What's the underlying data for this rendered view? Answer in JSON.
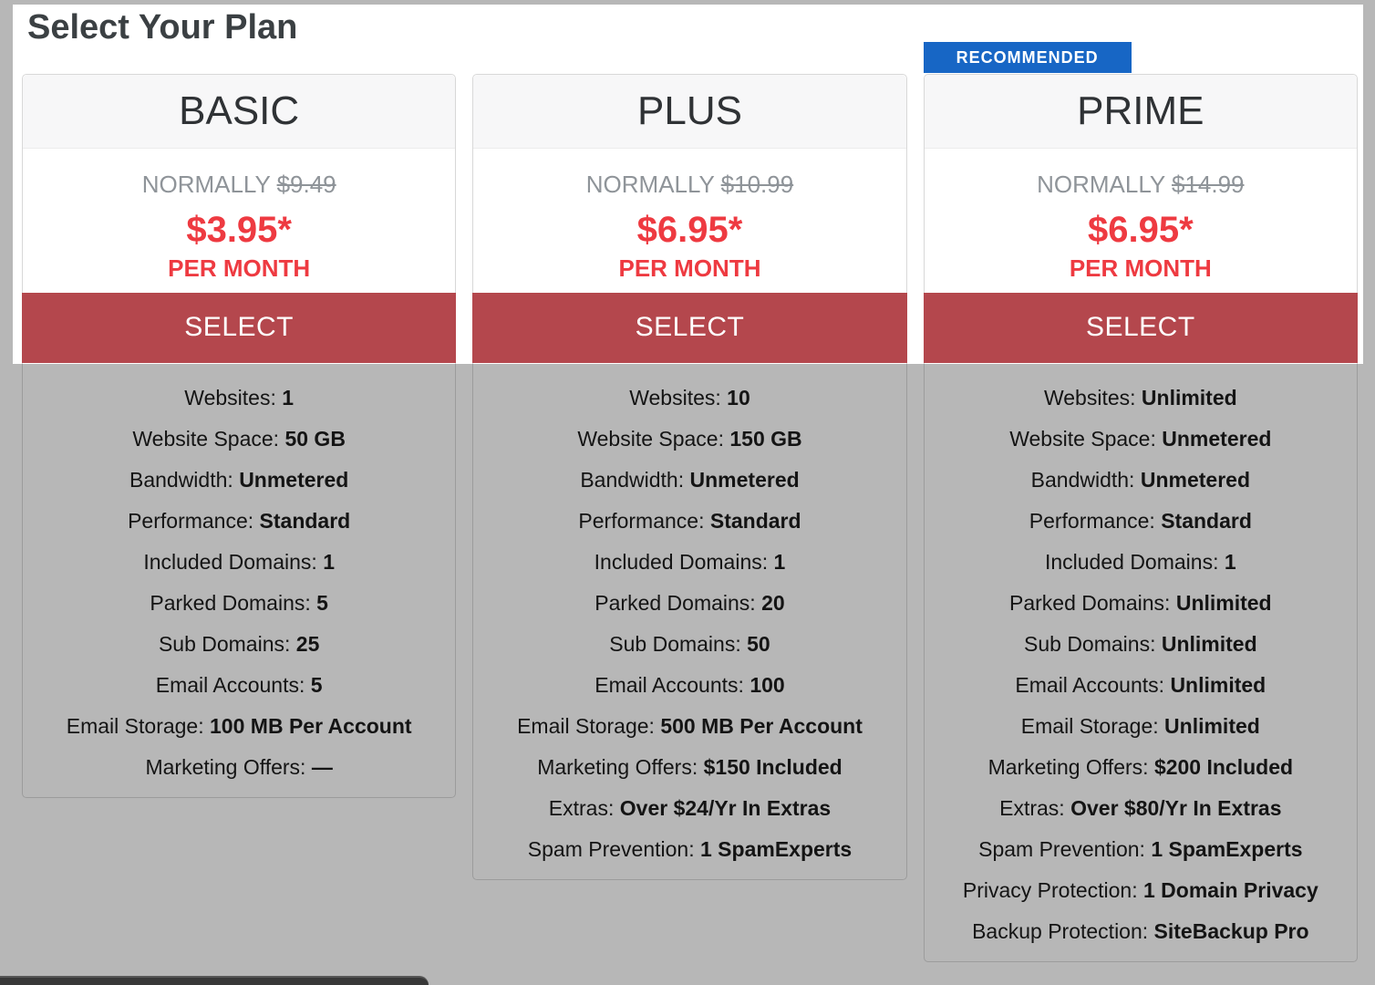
{
  "page_title": "Select Your Plan",
  "recommended_badge_label": "RECOMMENDED",
  "colors": {
    "price_red": "#ee3a41",
    "button_red": "#b4474d",
    "badge_blue": "#1766c5",
    "normally_gray": "#8f9499"
  },
  "plans": [
    {
      "name": "BASIC",
      "normally_label": "NORMALLY",
      "normally_price": "$9.49",
      "price": "$3.95*",
      "per_label": "PER MONTH",
      "select_label": "SELECT",
      "features": [
        {
          "label": "Websites:",
          "value": "1"
        },
        {
          "label": "Website Space:",
          "value": "50 GB"
        },
        {
          "label": "Bandwidth:",
          "value": "Unmetered"
        },
        {
          "label": "Performance:",
          "value": "Standard"
        },
        {
          "label": "Included Domains:",
          "value": "1"
        },
        {
          "label": "Parked Domains:",
          "value": "5"
        },
        {
          "label": "Sub Domains:",
          "value": "25"
        },
        {
          "label": "Email Accounts:",
          "value": "5"
        },
        {
          "label": "Email Storage:",
          "value": "100 MB Per Account"
        },
        {
          "label": "Marketing Offers:",
          "value": "—"
        }
      ]
    },
    {
      "name": "PLUS",
      "normally_label": "NORMALLY",
      "normally_price": "$10.99",
      "price": "$6.95*",
      "per_label": "PER MONTH",
      "select_label": "SELECT",
      "features": [
        {
          "label": "Websites:",
          "value": "10"
        },
        {
          "label": "Website Space:",
          "value": "150 GB"
        },
        {
          "label": "Bandwidth:",
          "value": "Unmetered"
        },
        {
          "label": "Performance:",
          "value": "Standard"
        },
        {
          "label": "Included Domains:",
          "value": "1"
        },
        {
          "label": "Parked Domains:",
          "value": "20"
        },
        {
          "label": "Sub Domains:",
          "value": "50"
        },
        {
          "label": "Email Accounts:",
          "value": "100"
        },
        {
          "label": "Email Storage:",
          "value": "500 MB Per Account"
        },
        {
          "label": "Marketing Offers:",
          "value": "$150 Included"
        },
        {
          "label": "Extras:",
          "value": "Over $24/Yr In Extras"
        },
        {
          "label": "Spam Prevention:",
          "value": "1 SpamExperts"
        }
      ]
    },
    {
      "name": "PRIME",
      "normally_label": "NORMALLY",
      "normally_price": "$14.99",
      "price": "$6.95*",
      "per_label": "PER MONTH",
      "select_label": "SELECT",
      "features": [
        {
          "label": "Websites:",
          "value": "Unlimited"
        },
        {
          "label": "Website Space:",
          "value": "Unmetered"
        },
        {
          "label": "Bandwidth:",
          "value": "Unmetered"
        },
        {
          "label": "Performance:",
          "value": "Standard"
        },
        {
          "label": "Included Domains:",
          "value": "1"
        },
        {
          "label": "Parked Domains:",
          "value": "Unlimited"
        },
        {
          "label": "Sub Domains:",
          "value": "Unlimited"
        },
        {
          "label": "Email Accounts:",
          "value": "Unlimited"
        },
        {
          "label": "Email Storage:",
          "value": "Unlimited"
        },
        {
          "label": "Marketing Offers:",
          "value": "$200 Included"
        },
        {
          "label": "Extras:",
          "value": "Over $80/Yr In Extras"
        },
        {
          "label": "Spam Prevention:",
          "value": "1 SpamExperts"
        },
        {
          "label": "Privacy Protection:",
          "value": "1 Domain Privacy"
        },
        {
          "label": "Backup Protection:",
          "value": "SiteBackup Pro"
        }
      ]
    }
  ]
}
